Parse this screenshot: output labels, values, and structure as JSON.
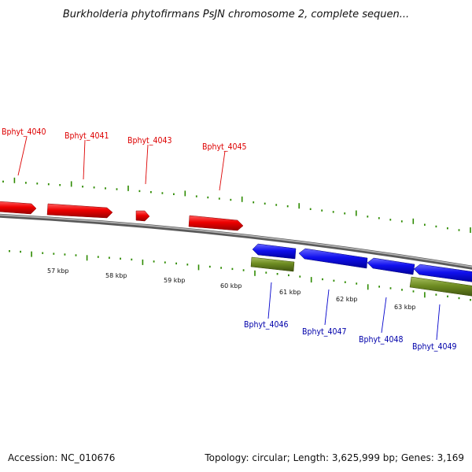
{
  "header": {
    "title": "Burkholderia phytofirmans PsJN chromosome 2, complete sequen..."
  },
  "colors": {
    "forward_gene": "#dd0000",
    "reverse_gene": "#0000dd",
    "reverse_feature": "#6a8a20",
    "backbone": "#888888",
    "tick": "#2e8b00"
  },
  "ruler": {
    "unit": "kbp",
    "ticks": [
      "57 kbp",
      "58 kbp",
      "59 kbp",
      "60 kbp",
      "61 kbp",
      "62 kbp",
      "63 kbp"
    ]
  },
  "genes": {
    "forward": [
      {
        "label": "Bphyt_4040"
      },
      {
        "label": "Bphyt_4041"
      },
      {
        "label": "Bphyt_4043"
      },
      {
        "label": "Bphyt_4045"
      }
    ],
    "reverse": [
      {
        "label": "Bphyt_4046"
      },
      {
        "label": "Bphyt_4047"
      },
      {
        "label": "Bphyt_4048"
      },
      {
        "label": "Bphyt_4049"
      }
    ]
  },
  "footer": {
    "accession": "Accession: NC_010676",
    "summary": "Topology: circular; Length: 3,625,999 bp; Genes: 3,169"
  }
}
